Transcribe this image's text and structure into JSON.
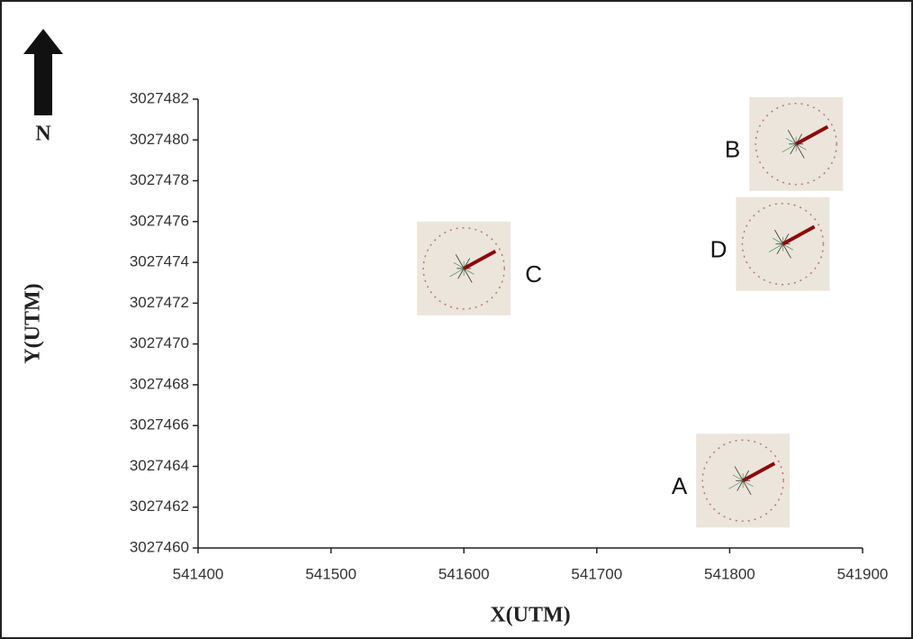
{
  "chart_data": {
    "type": "scatter",
    "x_label": "X(UTM)",
    "y_label": "Y(UTM)",
    "north_label": "N",
    "x": [
      541810,
      541850,
      541600,
      541840
    ],
    "values": [
      3027463.3,
      3027479.8,
      3027473.7,
      3027474.9
    ],
    "labels": [
      "A",
      "B",
      "C",
      "D"
    ],
    "color": "#8b0a0a",
    "xlim": [
      541400,
      541900
    ],
    "xticks": [
      541400,
      541500,
      541600,
      541700,
      541800,
      541900
    ],
    "ylim": [
      3027460,
      3027482
    ],
    "yticks": [
      3027460,
      3027462,
      3027464,
      3027466,
      3027468,
      3027470,
      3027472,
      3027474,
      3027476,
      3027478,
      3027480,
      3027482
    ],
    "grid": false
  }
}
